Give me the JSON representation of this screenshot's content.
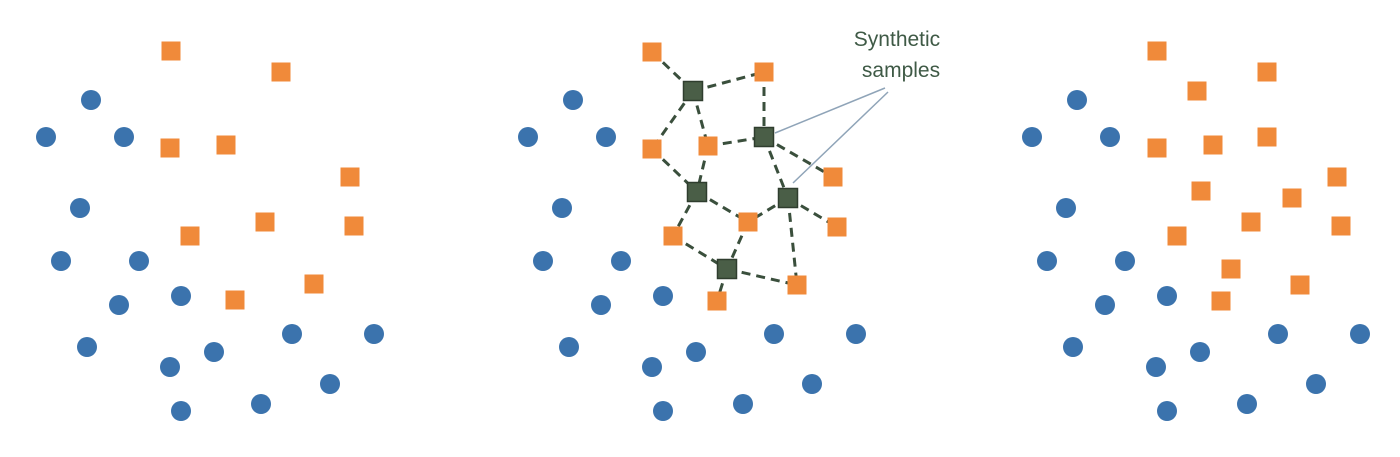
{
  "annotation": {
    "line1": "Synthetic",
    "line2": "samples"
  },
  "colors": {
    "majority": "#3b73ad",
    "minority": "#f08a3a",
    "synthetic": "#4a5e47",
    "annotation_text": "#3f5a46",
    "pointer_line": "#8fa4b8",
    "edge": "#3a4f3c"
  },
  "legend_semantics": {
    "majority": "circle",
    "minority": "square",
    "synthetic": "square"
  }
}
